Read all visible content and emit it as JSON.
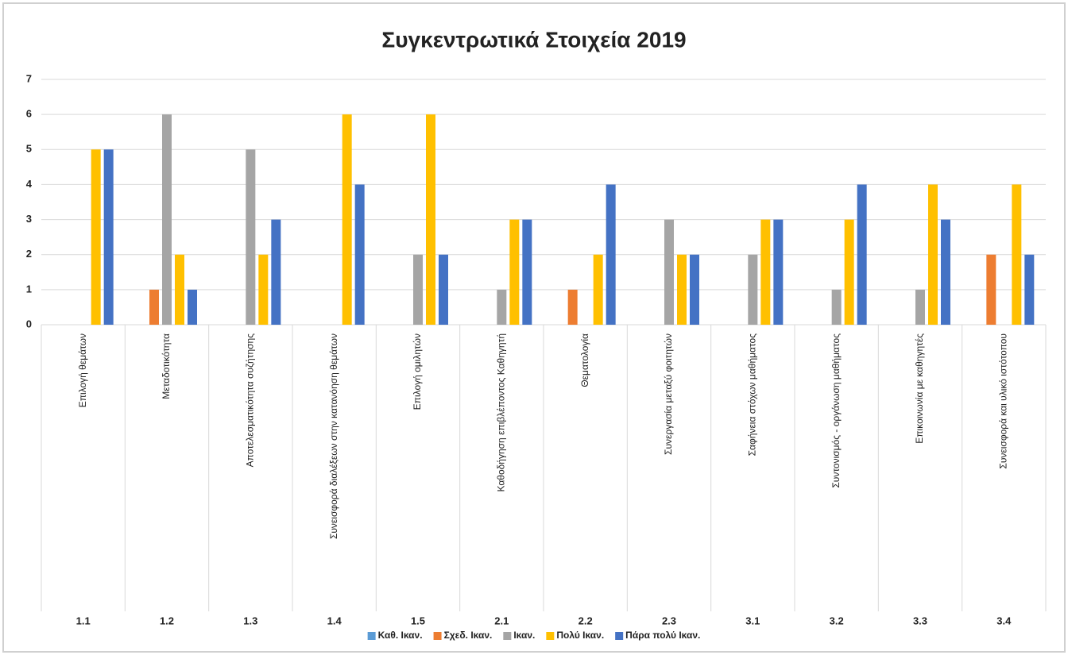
{
  "chart_data": {
    "type": "bar",
    "title": "Συγκεντρωτικά Στοιχεία 2019",
    "categories": [
      "1.1",
      "1.2",
      "1.3",
      "1.4",
      "1.5",
      "2.1",
      "2.2",
      "2.3",
      "3.1",
      "3.2",
      "3.3",
      "3.4"
    ],
    "subcategories": [
      "Επιλογή θεμάτων",
      "Μεταδοτικότητα",
      "Αποτελεσματικότητα συζήτησης",
      "Συνεισφορά διαλέξεων στην κατανόηση θεμάτων",
      "Επιλογή ομιλητών",
      "Καθοδήγηση επιβλέποντος Καθηγητή",
      "Θεματολογία",
      "Συνεργασία μεταξύ φοιτητών",
      "Σαφήνεια στόχων μαθήματος",
      "Συντονισμός - οργάνωση μαθήματος",
      "Επικοινωνία με καθηγητές",
      "Συνεισφορά και υλικό ιστότοπου"
    ],
    "series": [
      {
        "name": "Καθ. Ικαν.",
        "color": "#5b9bd5",
        "values": [
          0,
          0,
          0,
          0,
          0,
          0,
          0,
          0,
          0,
          0,
          0,
          0
        ]
      },
      {
        "name": "Σχεδ. Ικαν.",
        "color": "#ed7d31",
        "values": [
          0,
          1,
          0,
          0,
          0,
          0,
          1,
          0,
          0,
          0,
          0,
          2
        ]
      },
      {
        "name": "Ικαν.",
        "color": "#a5a5a5",
        "values": [
          0,
          6,
          5,
          0,
          2,
          1,
          0,
          3,
          2,
          1,
          1,
          0
        ]
      },
      {
        "name": "Πολύ Ικαν.",
        "color": "#ffc000",
        "values": [
          5,
          2,
          2,
          6,
          6,
          3,
          2,
          2,
          3,
          3,
          4,
          4
        ]
      },
      {
        "name": "Πάρα πολύ Ικαν.",
        "color": "#4472c4",
        "values": [
          5,
          1,
          3,
          4,
          2,
          3,
          4,
          2,
          3,
          4,
          3,
          2
        ]
      }
    ],
    "ylim": [
      0,
      7
    ],
    "yticks": [
      0,
      1,
      2,
      3,
      4,
      5,
      6,
      7
    ],
    "grid": true,
    "legend": "bottom"
  }
}
